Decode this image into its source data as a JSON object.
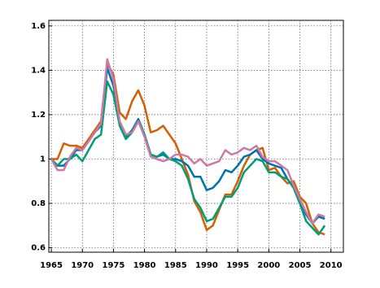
{
  "chart_data": {
    "type": "line",
    "x": [
      1965,
      1966,
      1967,
      1968,
      1969,
      1970,
      1971,
      1972,
      1973,
      1974,
      1975,
      1976,
      1977,
      1978,
      1979,
      1980,
      1981,
      1982,
      1983,
      1984,
      1985,
      1986,
      1987,
      1988,
      1989,
      1990,
      1991,
      1992,
      1993,
      1994,
      1995,
      1996,
      1997,
      1998,
      1999,
      2000,
      2001,
      2002,
      2003,
      2004,
      2005,
      2006,
      2007,
      2008,
      2009
    ],
    "series": [
      {
        "color": "#d55e00",
        "values": [
          1.0,
          1.0,
          1.07,
          1.06,
          1.06,
          1.05,
          1.09,
          1.13,
          1.17,
          1.43,
          1.38,
          1.21,
          1.18,
          1.26,
          1.31,
          1.24,
          1.12,
          1.13,
          1.15,
          1.11,
          1.07,
          1.0,
          0.93,
          0.81,
          0.76,
          0.68,
          0.7,
          0.77,
          0.84,
          0.84,
          0.9,
          0.97,
          1.02,
          1.04,
          1.05,
          0.95,
          0.96,
          0.92,
          0.89,
          0.9,
          0.83,
          0.8,
          0.71,
          0.67,
          0.66
        ]
      },
      {
        "color": "#0072b2",
        "values": [
          1.0,
          0.97,
          0.97,
          1.0,
          1.04,
          1.04,
          1.08,
          1.12,
          1.15,
          1.41,
          1.33,
          1.17,
          1.1,
          1.13,
          1.18,
          1.11,
          1.02,
          1.01,
          1.02,
          1.0,
          1.0,
          0.99,
          0.97,
          0.92,
          0.92,
          0.86,
          0.87,
          0.9,
          0.95,
          0.94,
          0.97,
          1.01,
          1.02,
          1.04,
          1.0,
          0.98,
          0.97,
          0.96,
          0.91,
          0.87,
          0.8,
          0.75,
          0.71,
          0.74,
          0.73
        ]
      },
      {
        "color": "#009e73",
        "values": [
          1.0,
          0.97,
          1.0,
          1.0,
          1.02,
          0.99,
          1.04,
          1.09,
          1.11,
          1.35,
          1.29,
          1.15,
          1.09,
          1.12,
          1.17,
          1.11,
          1.02,
          1.01,
          1.03,
          1.0,
          0.99,
          0.97,
          0.91,
          0.82,
          0.78,
          0.72,
          0.73,
          0.78,
          0.83,
          0.83,
          0.87,
          0.94,
          0.97,
          1.0,
          0.99,
          0.94,
          0.94,
          0.92,
          0.91,
          0.87,
          0.8,
          0.72,
          0.69,
          0.66,
          0.7
        ]
      },
      {
        "color": "#cc79a7",
        "values": [
          1.0,
          0.95,
          0.95,
          1.01,
          1.05,
          1.04,
          1.08,
          1.12,
          1.16,
          1.45,
          1.36,
          1.17,
          1.11,
          1.12,
          1.17,
          1.1,
          1.01,
          1.0,
          0.99,
          1.0,
          1.02,
          1.02,
          1.01,
          0.98,
          1.0,
          0.97,
          0.98,
          0.99,
          1.04,
          1.02,
          1.03,
          1.05,
          1.04,
          1.06,
          1.01,
          0.99,
          0.99,
          0.97,
          0.95,
          0.88,
          0.82,
          0.76,
          0.71,
          0.75,
          0.74
        ]
      }
    ],
    "xlim": [
      1964.6,
      2012
    ],
    "xticks": [
      1965,
      1970,
      1975,
      1980,
      1985,
      1990,
      1995,
      2000,
      2005,
      2010
    ],
    "ylim": [
      0.58,
      1.625
    ],
    "yticks": [
      0.6,
      0.8,
      1,
      1.2,
      1.4,
      1.6
    ],
    "grid": true
  }
}
